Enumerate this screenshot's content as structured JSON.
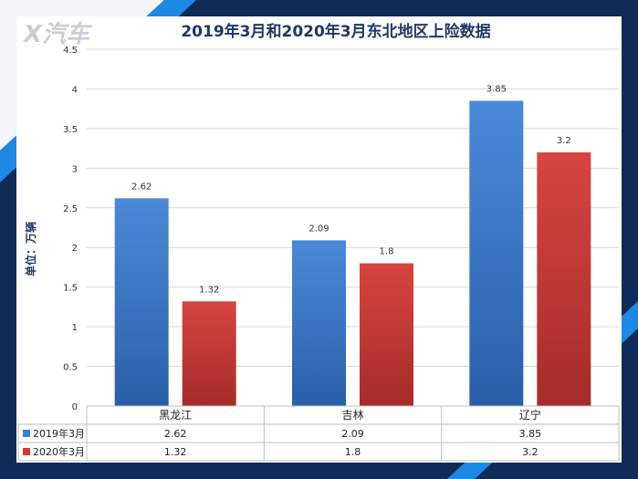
{
  "watermark": "X汽车",
  "colors": {
    "series1": "#3f7fd0",
    "series2": "#cc3b39",
    "frame": "#0e2a57",
    "accent": "#1e88e5"
  },
  "chart_data": {
    "type": "bar",
    "title": "2019年3月和2020年3月东北地区上险数据",
    "ylabel": "单位：万辆",
    "xlabel": "",
    "categories": [
      "黑龙江",
      "吉林",
      "辽宁"
    ],
    "series": [
      {
        "name": "2019年3月",
        "values": [
          2.62,
          2.09,
          3.85
        ]
      },
      {
        "name": "2020年3月",
        "values": [
          1.32,
          1.8,
          3.2
        ]
      }
    ],
    "ylim": [
      0,
      4.5
    ],
    "yticks": [
      0,
      0.5,
      1,
      1.5,
      2,
      2.5,
      3,
      3.5,
      4,
      4.5
    ],
    "grid": true,
    "data_table": true
  }
}
